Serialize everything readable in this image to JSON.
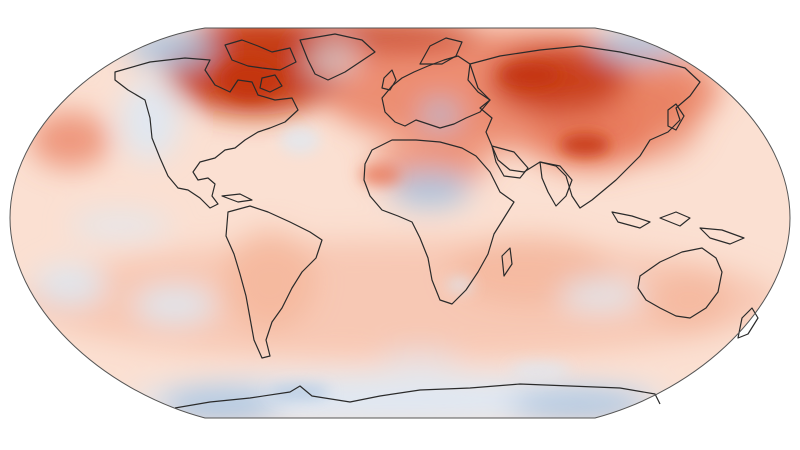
{
  "map": {
    "projection": "robinson",
    "kind": "global surface temperature anomaly",
    "colors": {
      "strong_warm": "#c4350f",
      "warm": "#e8795a",
      "mild_warm": "#f4b59a",
      "light_warm": "#fbe0d2",
      "neutral": "#f7f4f2",
      "light_cool": "#dde8f3",
      "cool": "#a9c4e1",
      "strong_cool": "#6f98c6",
      "coastline": "#2a2a2a",
      "frame": "#555555"
    }
  }
}
